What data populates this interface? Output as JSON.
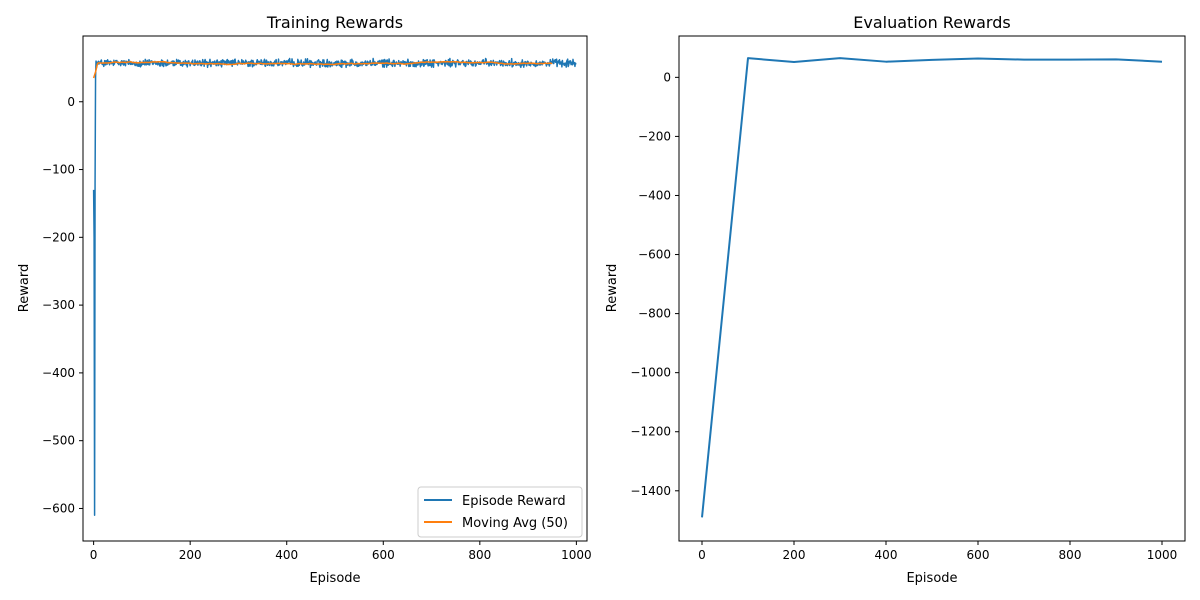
{
  "colors": {
    "series_blue": "#1f77b4",
    "series_orange": "#ff7f0e",
    "axis": "#000000",
    "background": "#ffffff",
    "legend_border": "#cccccc"
  },
  "chart_data": [
    {
      "type": "line",
      "title": "Training Rewards",
      "xlabel": "Episode",
      "ylabel": "Reward",
      "xlim": [
        -22,
        1022
      ],
      "ylim": [
        -648,
        97
      ],
      "xticks": [
        0,
        200,
        400,
        600,
        800,
        1000
      ],
      "yticks": [
        -600,
        -500,
        -400,
        -300,
        -200,
        -100,
        0
      ],
      "grid": false,
      "legend_position": "lower right",
      "episodes": 1000,
      "series": [
        {
          "name": "Episode Reward",
          "color": "#1f77b4",
          "initial_points": [
            [
              0,
              -130
            ],
            [
              1,
              -200
            ],
            [
              2,
              -610
            ],
            [
              3,
              -120
            ],
            [
              4,
              35
            ],
            [
              5,
              60
            ]
          ],
          "steady_range": [
            50,
            64
          ],
          "steady_mean": 57
        },
        {
          "name": "Moving Avg (50)",
          "color": "#ff7f0e",
          "window": 50,
          "initial_points": [
            [
              0,
              35
            ],
            [
              4,
              44
            ],
            [
              8,
              56
            ]
          ],
          "steady_range": [
            55,
            59
          ],
          "steady_mean": 57
        }
      ]
    },
    {
      "type": "line",
      "title": "Evaluation Rewards",
      "xlabel": "Episode",
      "ylabel": "Reward",
      "xlim": [
        -50,
        1050
      ],
      "ylim": [
        -1570,
        140
      ],
      "xticks": [
        0,
        200,
        400,
        600,
        800,
        1000
      ],
      "yticks": [
        -1400,
        -1200,
        -1000,
        -800,
        -600,
        -400,
        -200,
        0
      ],
      "grid": false,
      "series": [
        {
          "name": "",
          "color": "#1f77b4",
          "x": [
            0,
            100,
            200,
            300,
            400,
            500,
            600,
            700,
            800,
            900,
            1000
          ],
          "y": [
            -1490,
            65,
            52,
            65,
            53,
            59,
            64,
            60,
            60,
            61,
            53
          ]
        }
      ]
    }
  ]
}
